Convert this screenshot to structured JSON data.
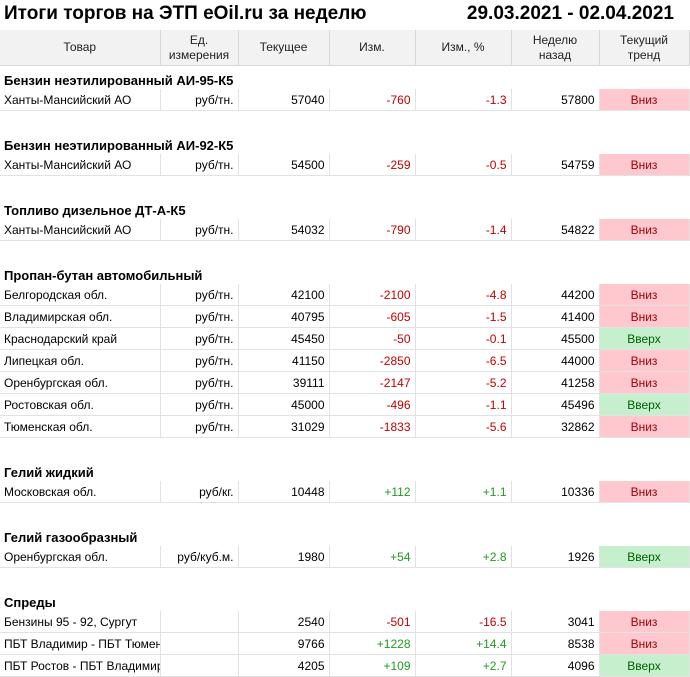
{
  "header": {
    "title": "Итоги торгов на ЭТП eOil.ru за неделю",
    "period": "29.03.2021 - 02.04.2021"
  },
  "columns": [
    "Товар",
    "Ед. измерения",
    "Текущее",
    "Изм.",
    "Изм., %",
    "Неделю назад",
    "Текущий тренд"
  ],
  "column_lines": [
    [
      "Товар"
    ],
    [
      "Ед.",
      "измерения"
    ],
    [
      "Текущее"
    ],
    [
      "Изм."
    ],
    [
      "Изм., %"
    ],
    [
      "Неделю",
      "назад"
    ],
    [
      "Текущий",
      "тренд"
    ]
  ],
  "sections": [
    {
      "title": "Бензин неэтилированный АИ-95-К5",
      "rows": [
        {
          "name": "Ханты-Мансийский АО",
          "unit": "руб/тн.",
          "current": "57040",
          "change": "-760",
          "change_pct": "-1.3",
          "prev": "57800",
          "trend": "Вниз",
          "dir": "down"
        }
      ]
    },
    {
      "title": "Бензин неэтилированный АИ-92-К5",
      "rows": [
        {
          "name": "Ханты-Мансийский АО",
          "unit": "руб/тн.",
          "current": "54500",
          "change": "-259",
          "change_pct": "-0.5",
          "prev": "54759",
          "trend": "Вниз",
          "dir": "down"
        }
      ]
    },
    {
      "title": "Топливо дизельное ДТ-А-К5",
      "rows": [
        {
          "name": "Ханты-Мансийский АО",
          "unit": "руб/тн.",
          "current": "54032",
          "change": "-790",
          "change_pct": "-1.4",
          "prev": "54822",
          "trend": "Вниз",
          "dir": "down"
        }
      ]
    },
    {
      "title": "Пропан-бутан автомобильный",
      "rows": [
        {
          "name": "Белгородская обл.",
          "unit": "руб/тн.",
          "current": "42100",
          "change": "-2100",
          "change_pct": "-4.8",
          "prev": "44200",
          "trend": "Вниз",
          "dir": "down"
        },
        {
          "name": "Владимирская обл.",
          "unit": "руб/тн.",
          "current": "40795",
          "change": "-605",
          "change_pct": "-1.5",
          "prev": "41400",
          "trend": "Вниз",
          "dir": "down"
        },
        {
          "name": "Краснодарский край",
          "unit": "руб/тн.",
          "current": "45450",
          "change": "-50",
          "change_pct": "-0.1",
          "prev": "45500",
          "trend": "Вверх",
          "dir": "up"
        },
        {
          "name": "Липецкая обл.",
          "unit": "руб/тн.",
          "current": "41150",
          "change": "-2850",
          "change_pct": "-6.5",
          "prev": "44000",
          "trend": "Вниз",
          "dir": "down"
        },
        {
          "name": "Оренбургская обл.",
          "unit": "руб/тн.",
          "current": "39111",
          "change": "-2147",
          "change_pct": "-5.2",
          "prev": "41258",
          "trend": "Вниз",
          "dir": "down"
        },
        {
          "name": "Ростовская обл.",
          "unit": "руб/тн.",
          "current": "45000",
          "change": "-496",
          "change_pct": "-1.1",
          "prev": "45496",
          "trend": "Вверх",
          "dir": "up"
        },
        {
          "name": "Тюменская обл.",
          "unit": "руб/тн.",
          "current": "31029",
          "change": "-1833",
          "change_pct": "-5.6",
          "prev": "32862",
          "trend": "Вниз",
          "dir": "down"
        }
      ]
    },
    {
      "title": "Гелий жидкий",
      "rows": [
        {
          "name": "Московская обл.",
          "unit": "руб/кг.",
          "current": "10448",
          "change": "+112",
          "change_pct": "+1.1",
          "prev": "10336",
          "trend": "Вниз",
          "dir": "down"
        }
      ]
    },
    {
      "title": "Гелий газообразный",
      "rows": [
        {
          "name": "Оренбургская обл.",
          "unit": "руб/куб.м.",
          "current": "1980",
          "change": "+54",
          "change_pct": "+2.8",
          "prev": "1926",
          "trend": "Вверх",
          "dir": "up"
        }
      ]
    },
    {
      "title": "Спреды",
      "rows": [
        {
          "name": "Бензины 95 - 92, Сургут",
          "unit": "",
          "current": "2540",
          "change": "-501",
          "change_pct": "-16.5",
          "prev": "3041",
          "trend": "Вниз",
          "dir": "down"
        },
        {
          "name": "ПБТ Владимир - ПБТ Тюмень",
          "unit": "",
          "current": "9766",
          "change": "+1228",
          "change_pct": "+14.4",
          "prev": "8538",
          "trend": "Вниз",
          "dir": "down"
        },
        {
          "name": "ПБТ Ростов - ПБТ Владимир",
          "unit": "",
          "current": "4205",
          "change": "+109",
          "change_pct": "+2.7",
          "prev": "4096",
          "trend": "Вверх",
          "dir": "up"
        }
      ]
    }
  ],
  "colors": {
    "down_bg": "#ffc7ce",
    "up_bg": "#c6efce",
    "negative_text": "#c00000",
    "positive_text": "#1f9b1f"
  }
}
